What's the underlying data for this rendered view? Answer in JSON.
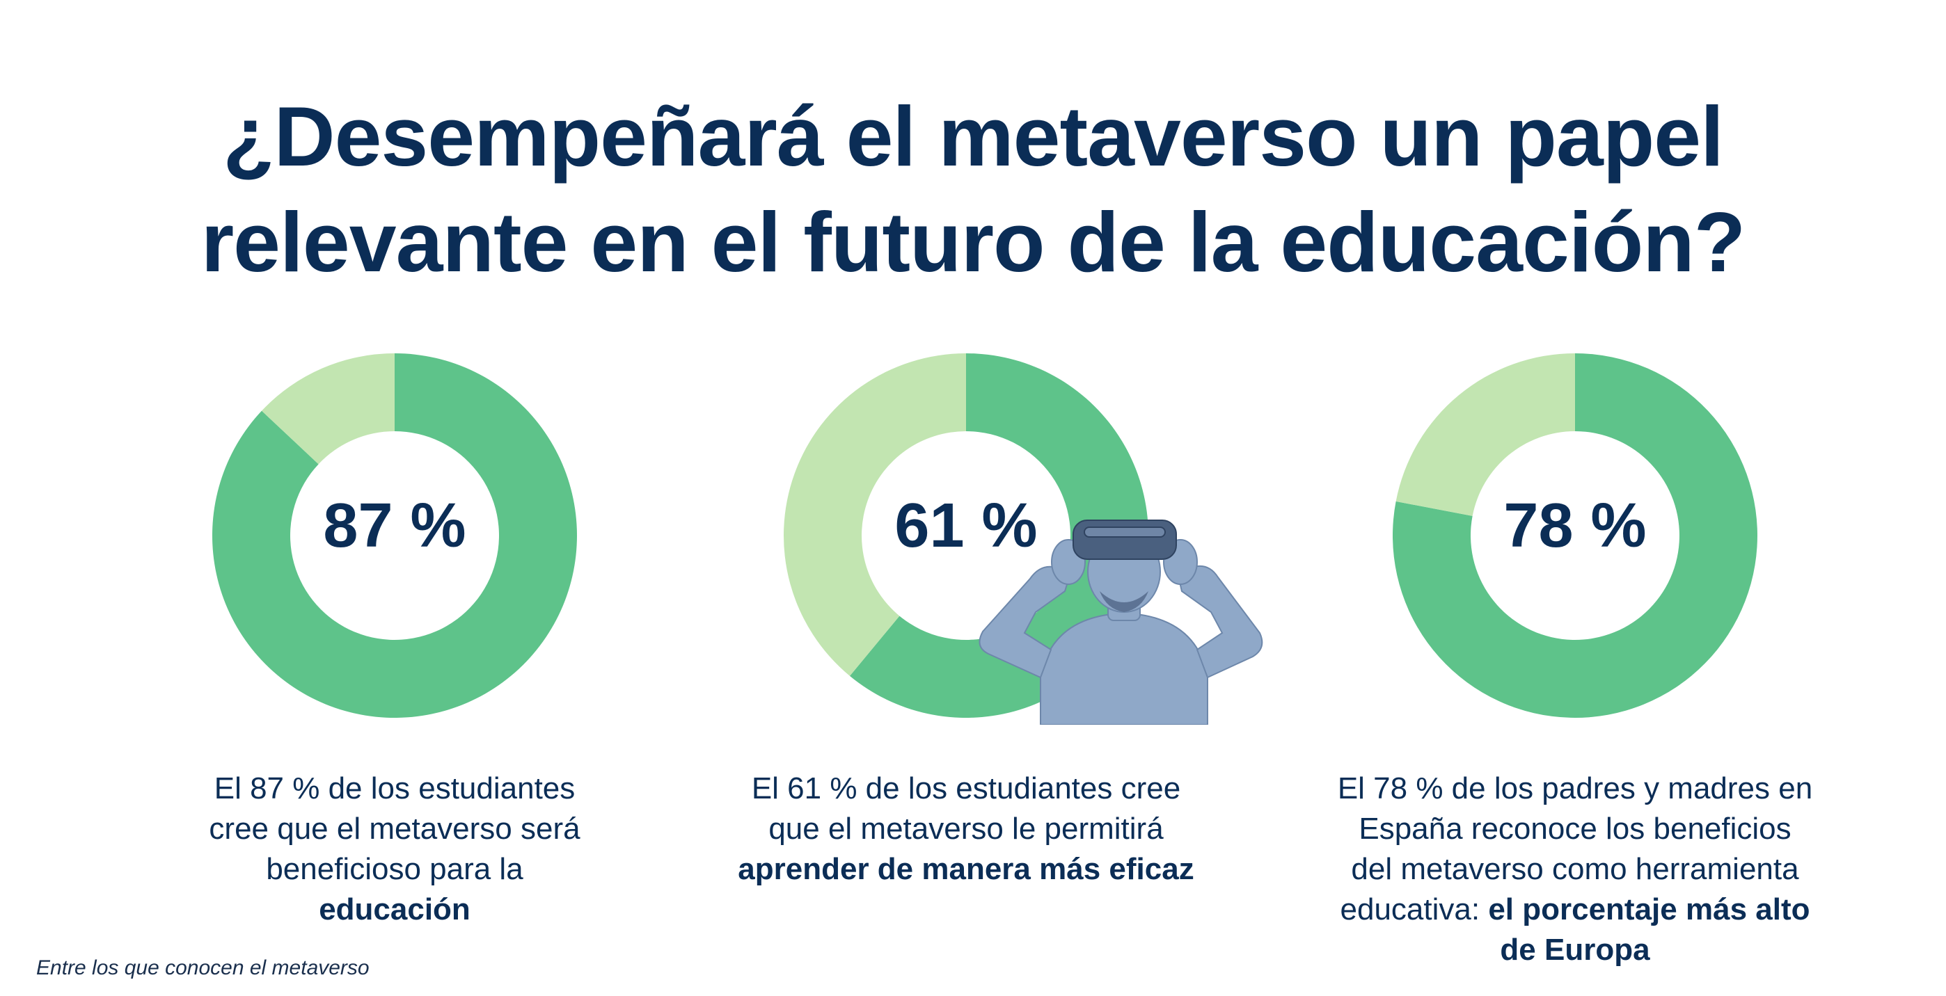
{
  "title": {
    "line1": "¿Desempeñará el metaverso un papel",
    "line2": "relevante en el futuro de la educación?"
  },
  "colors": {
    "navy": "#0b2d56",
    "primary_green": "#5ec38a",
    "light_green": "#c2e5b1",
    "photo_blue": "#8fa8c8"
  },
  "chart_data": [
    {
      "type": "pie",
      "label": "87 %",
      "values": [
        87,
        13
      ],
      "categories": [
        "",
        ""
      ]
    },
    {
      "type": "pie",
      "label": "61 %",
      "values": [
        61,
        39
      ],
      "categories": [
        "",
        ""
      ]
    },
    {
      "type": "pie",
      "label": "78 %",
      "values": [
        78,
        22
      ],
      "categories": [
        "",
        ""
      ]
    }
  ],
  "captions": [
    {
      "lines": [
        "El 87 % de los estudiantes",
        "cree que el metaverso será",
        "beneficioso para la"
      ],
      "bold": [
        "educación"
      ]
    },
    {
      "lines": [
        "El 61 % de los estudiantes cree",
        "que el metaverso le permitirá"
      ],
      "bold": [
        "aprender de manera más eficaz"
      ]
    },
    {
      "lines": [
        "El 78 % de los padres y madres en",
        "España reconoce los beneficios",
        "del metaverso como herramienta"
      ],
      "mixed": {
        "normal": "educativa: ",
        "bold": "el porcentaje más alto"
      },
      "bold": [
        "de Europa"
      ]
    }
  ],
  "footnote": "Entre los que conocen el metaverso",
  "image": {
    "icon": "person-vr-headset-icon"
  }
}
